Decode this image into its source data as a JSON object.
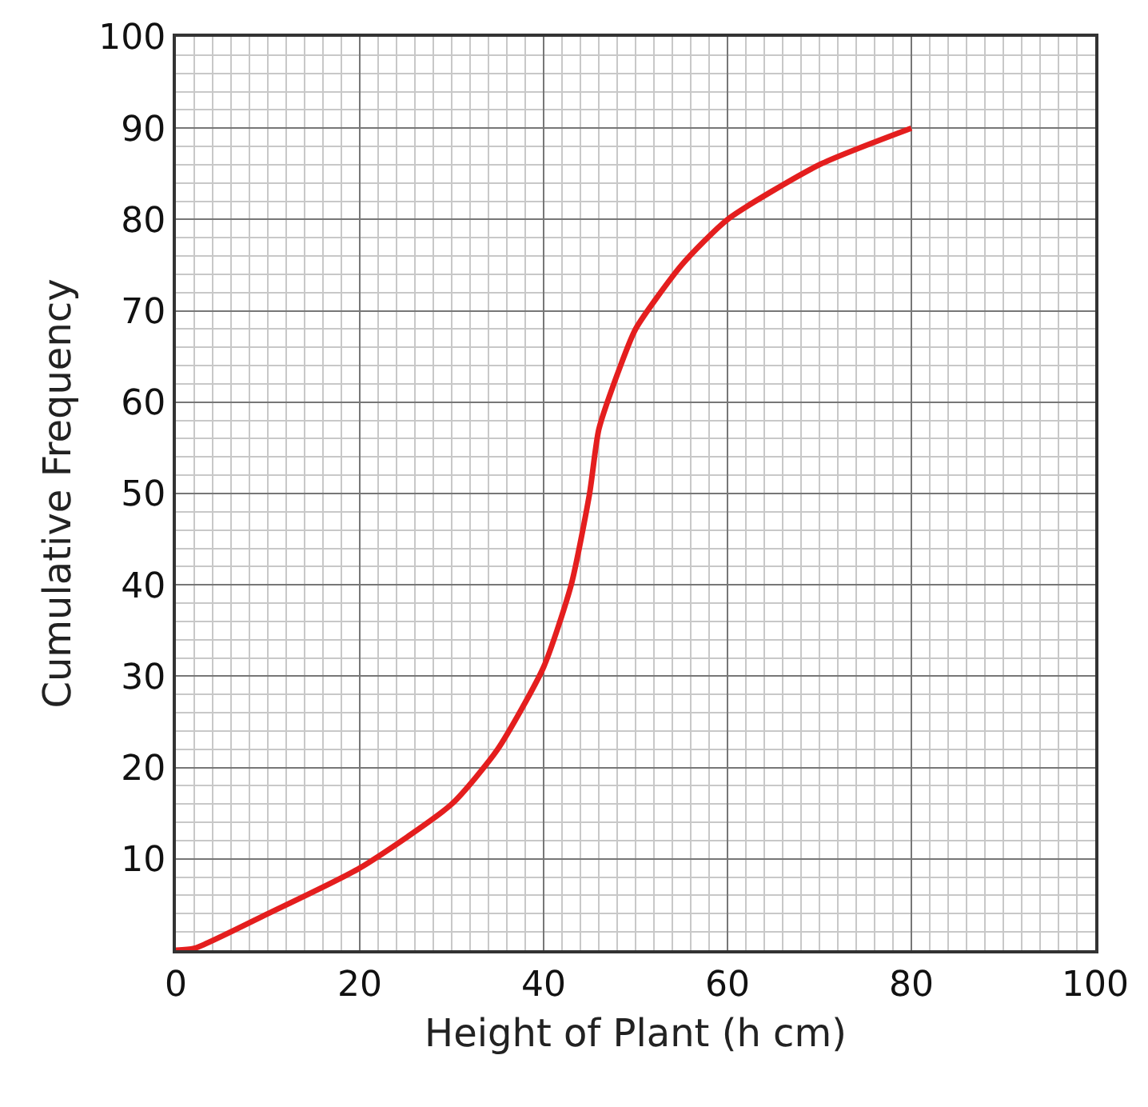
{
  "chart_data": {
    "type": "line",
    "xlabel": "Height of Plant (h cm)",
    "ylabel": "Cumulative Frequency",
    "x": [
      0,
      2,
      10,
      20,
      30,
      35,
      40,
      43,
      45,
      46,
      48,
      50,
      55,
      60,
      70,
      80
    ],
    "values": [
      0,
      0.2,
      4,
      9,
      16,
      22,
      31,
      40,
      50,
      57,
      63,
      68,
      75,
      80,
      86,
      90
    ],
    "color": "#e41e1e",
    "marker": "none",
    "line_style": "solid",
    "xlim": [
      0,
      100
    ],
    "xticks": [
      0,
      20,
      40,
      60,
      80,
      100
    ],
    "ylim": [
      0,
      100
    ],
    "yticks": [
      {
        "value": 0,
        "label": null
      },
      10,
      20,
      30,
      40,
      50,
      60,
      70,
      80,
      90,
      100
    ],
    "grid": true
  }
}
